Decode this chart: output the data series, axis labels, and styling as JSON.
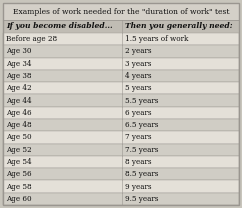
{
  "title": "Examples of work needed for the \"duration of work\" test",
  "col1_header": "If you become disabled...",
  "col2_header": "Then you generally need:",
  "rows": [
    [
      "Before age 28",
      "1.5 years of work"
    ],
    [
      "Age 30",
      "2 years"
    ],
    [
      "Age 34",
      "3 years"
    ],
    [
      "Age 38",
      "4 years"
    ],
    [
      "Age 42",
      "5 years"
    ],
    [
      "Age 44",
      "5.5 years"
    ],
    [
      "Age 46",
      "6 years"
    ],
    [
      "Age 48",
      "6.5 years"
    ],
    [
      "Age 50",
      "7 years"
    ],
    [
      "Age 52",
      "7.5 years"
    ],
    [
      "Age 54",
      "8 years"
    ],
    [
      "Age 56",
      "8.5 years"
    ],
    [
      "Age 58",
      "9 years"
    ],
    [
      "Age 60",
      "9.5 years"
    ]
  ],
  "outer_bg": "#c8c5bc",
  "title_bg": "#d4d0c8",
  "col_header_bg": "#c0bcb4",
  "row_even_bg": "#e4e0d8",
  "row_odd_bg": "#d0cdc5",
  "border_color": "#9a9690",
  "text_color": "#111111",
  "title_fontsize": 5.5,
  "header_fontsize": 5.5,
  "row_fontsize": 5.2,
  "col_split": 0.505
}
